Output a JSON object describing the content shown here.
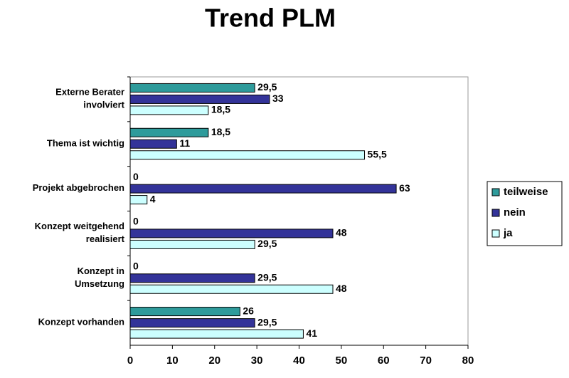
{
  "chart_data": {
    "type": "barh",
    "title": "Trend PLM",
    "categories": [
      "Externe Berater\ninvolviert",
      "Thema ist wichtig",
      "Projekt abgebrochen",
      "Konzept weitgehend\nrealisiert",
      "Konzept in\nUmsetzung",
      "Konzept vorhanden"
    ],
    "series": [
      {
        "name": "teilweise",
        "color": "#2e9b9b",
        "values": [
          29.5,
          18.5,
          0,
          0,
          0,
          26
        ],
        "value_labels": [
          "29,5",
          "18,5",
          "0",
          "0",
          "0",
          "26"
        ]
      },
      {
        "name": "nein",
        "color": "#333399",
        "values": [
          33,
          11,
          63,
          48,
          29.5,
          29.5
        ],
        "value_labels": [
          "33",
          "11",
          "63",
          "48",
          "29,5",
          "29,5"
        ]
      },
      {
        "name": "ja",
        "color": "#ccffff",
        "values": [
          18.5,
          55.5,
          4,
          29.5,
          48,
          41
        ],
        "value_labels": [
          "18,5",
          "55,5",
          "4",
          "29,5",
          "48",
          "41"
        ]
      }
    ],
    "xlim": [
      0,
      80
    ],
    "xticks": [
      0,
      10,
      20,
      30,
      40,
      50,
      60,
      70,
      80
    ],
    "legend": "right"
  }
}
